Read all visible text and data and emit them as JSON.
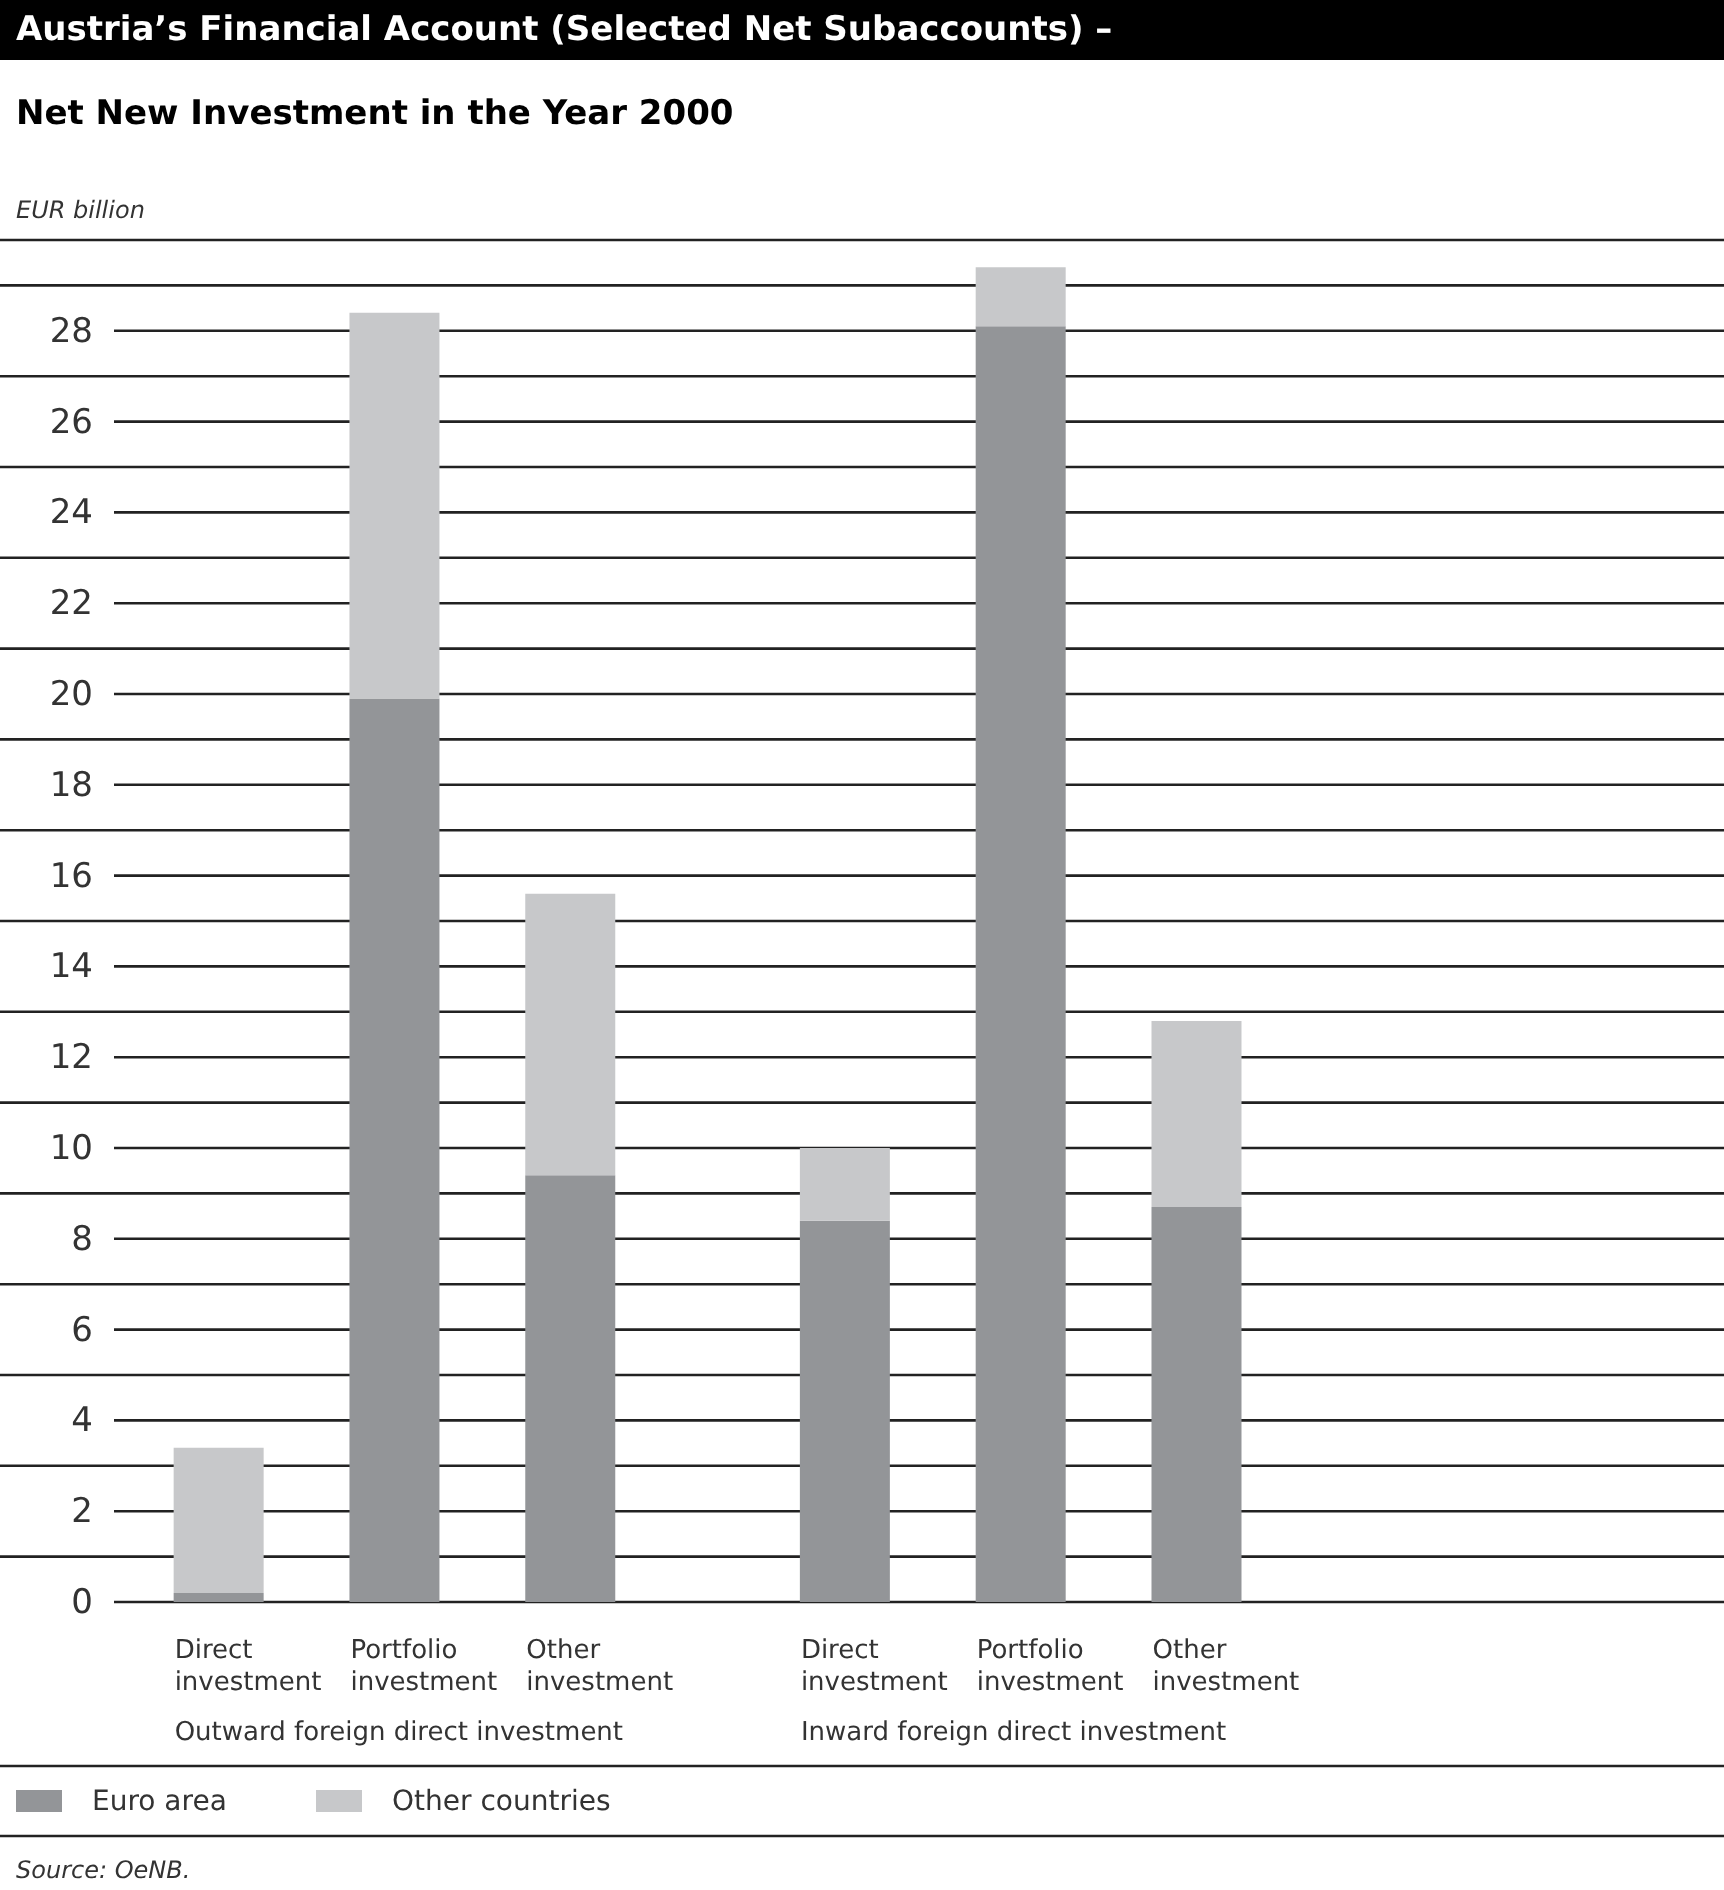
{
  "chart_data": {
    "type": "bar",
    "stacked": true,
    "title": "Austria’s Financial Account (Selected Net Subaccounts) –",
    "subtitle": "Net New Investment in the Year 2000",
    "ylabel": "EUR billion",
    "categories": [
      "Direct investment",
      "Portfolio investment",
      "Other investment",
      "Direct investment",
      "Portfolio investment",
      "Other investment"
    ],
    "series": [
      {
        "name": "Euro area",
        "color": "#939598",
        "values": [
          0.2,
          19.9,
          9.4,
          8.4,
          28.1,
          8.7
        ]
      },
      {
        "name": "Other countries",
        "color": "#c7c8ca",
        "values": [
          3.2,
          8.5,
          6.2,
          1.6,
          1.3,
          4.1
        ]
      }
    ],
    "ylim": [
      0,
      30
    ],
    "yticks": [
      0,
      {
        "value": 1,
        "label": null
      },
      2,
      {
        "value": 3,
        "label": null
      },
      4,
      {
        "value": 5,
        "label": null
      },
      6,
      {
        "value": 7,
        "label": null
      },
      8,
      {
        "value": 9,
        "label": null
      },
      10,
      {
        "value": 11,
        "label": null
      },
      12,
      {
        "value": 13,
        "label": null
      },
      14,
      {
        "value": 15,
        "label": null
      },
      16,
      {
        "value": 17,
        "label": null
      },
      18,
      {
        "value": 19,
        "label": null
      },
      20,
      {
        "value": 21,
        "label": null
      },
      22,
      {
        "value": 23,
        "label": null
      },
      24,
      {
        "value": 25,
        "label": null
      },
      26,
      {
        "value": 27,
        "label": null
      },
      28,
      {
        "value": 29,
        "label": null
      }
    ],
    "grid": "y",
    "legend": "bottom",
    "annotations": [
      "Outward foreign direct investment",
      "Inward foreign direct investment",
      "Source: OeNB."
    ]
  }
}
